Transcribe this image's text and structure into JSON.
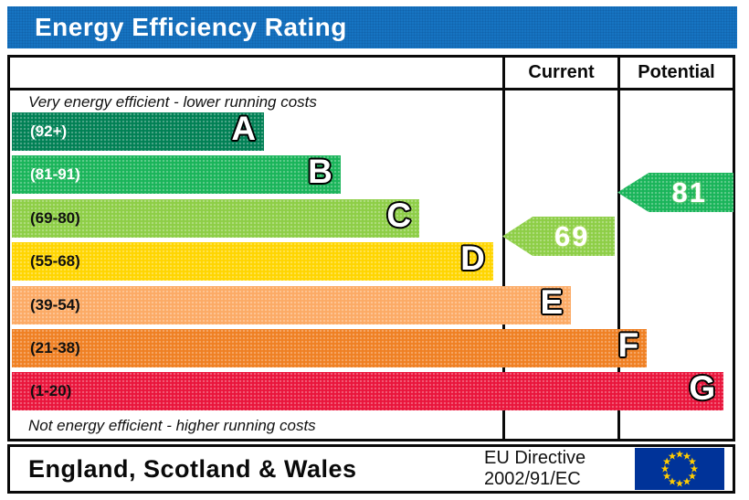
{
  "title": "Energy Efficiency Rating",
  "table": {
    "header": {
      "current": "Current",
      "potential": "Potential"
    },
    "top_note": "Very energy efficient - lower running costs",
    "bottom_note": "Not energy efficient - higher running costs"
  },
  "bands": [
    {
      "letter": "A",
      "range": "(92+)",
      "min": 92,
      "max": 100,
      "color": "#008054",
      "width_pct": 34.9,
      "label_color": "#ffffff"
    },
    {
      "letter": "B",
      "range": "(81-91)",
      "min": 81,
      "max": 91,
      "color": "#19b459",
      "width_pct": 45.5,
      "label_color": "#ffffff"
    },
    {
      "letter": "C",
      "range": "(69-80)",
      "min": 69,
      "max": 80,
      "color": "#8dce46",
      "width_pct": 56.4,
      "label_color": "#111111"
    },
    {
      "letter": "D",
      "range": "(55-68)",
      "min": 55,
      "max": 68,
      "color": "#ffd500",
      "width_pct": 66.6,
      "label_color": "#111111"
    },
    {
      "letter": "E",
      "range": "(39-54)",
      "min": 39,
      "max": 54,
      "color": "#fcaa65",
      "width_pct": 77.4,
      "label_color": "#111111"
    },
    {
      "letter": "F",
      "range": "(21-38)",
      "min": 21,
      "max": 38,
      "color": "#ef8023",
      "width_pct": 87.9,
      "label_color": "#111111"
    },
    {
      "letter": "G",
      "range": "(1-20)",
      "min": 1,
      "max": 20,
      "color": "#e9153b",
      "width_pct": 98.5,
      "label_color": "#111111"
    }
  ],
  "ratings": {
    "current": {
      "value": 69,
      "band": "C",
      "color": "#8dce46"
    },
    "potential": {
      "value": 81,
      "band": "B",
      "color": "#19b459"
    }
  },
  "footer": {
    "region": "England, Scotland & Wales",
    "directive_lines": [
      "EU Directive",
      "2002/91/EC"
    ],
    "eu_flag": {
      "blue": "#003399",
      "star": "#ffcc00"
    }
  },
  "chart_data": {
    "type": "bar",
    "title": "Energy Efficiency Rating",
    "categories": [
      "A",
      "B",
      "C",
      "D",
      "E",
      "F",
      "G"
    ],
    "band_ranges": [
      "92+",
      "81-91",
      "69-80",
      "55-68",
      "39-54",
      "21-38",
      "1-20"
    ],
    "band_colors": [
      "#008054",
      "#19b459",
      "#8dce46",
      "#ffd500",
      "#fcaa65",
      "#ef8023",
      "#e9153b"
    ],
    "bar_lengths_pct": [
      34.9,
      45.5,
      56.4,
      66.6,
      77.4,
      87.9,
      98.5
    ],
    "scale": [
      1,
      100
    ],
    "series": [
      {
        "name": "Current",
        "value": 69,
        "band": "C"
      },
      {
        "name": "Potential",
        "value": 81,
        "band": "B"
      }
    ],
    "annotations": [
      "Very energy efficient - lower running costs",
      "Not energy efficient - higher running costs"
    ],
    "legend_position": "columns-right",
    "footer": [
      "England, Scotland & Wales",
      "EU Directive 2002/91/EC"
    ]
  }
}
